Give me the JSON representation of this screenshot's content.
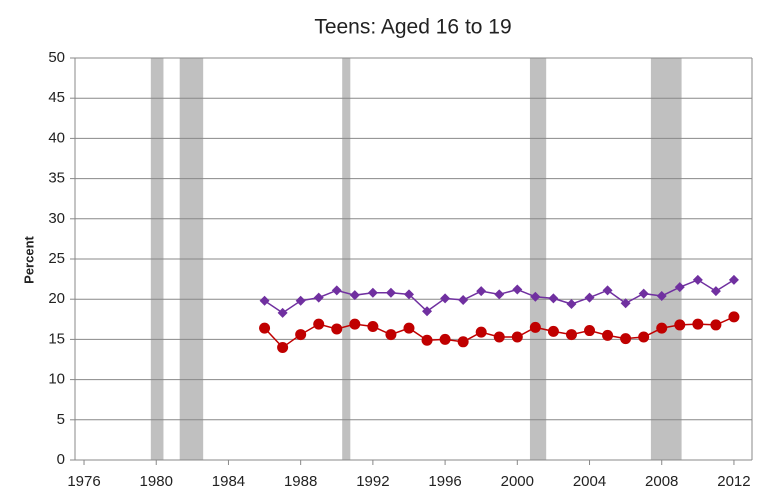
{
  "chart_data": {
    "type": "line",
    "title": "Teens: Aged 16 to 19",
    "y_label": "Percent",
    "x": [
      1986,
      1987,
      1988,
      1989,
      1990,
      1991,
      1992,
      1993,
      1994,
      1995,
      1996,
      1997,
      1998,
      1999,
      2000,
      2001,
      2002,
      2003,
      2004,
      2005,
      2006,
      2007,
      2008,
      2009,
      2010,
      2011,
      2012
    ],
    "series": [
      {
        "color": "#7030a0",
        "marker": "diamond",
        "values": [
          19.8,
          18.3,
          19.8,
          20.2,
          21.1,
          20.5,
          20.8,
          20.8,
          20.6,
          18.5,
          20.1,
          19.9,
          21.0,
          20.6,
          21.2,
          20.3,
          20.1,
          19.4,
          20.2,
          21.1,
          19.5,
          20.7,
          20.4,
          21.5,
          22.4,
          21.0,
          22.4
        ]
      },
      {
        "color": "#c00000",
        "marker": "circle",
        "values": [
          16.4,
          14.0,
          15.6,
          16.9,
          16.3,
          16.9,
          16.6,
          15.6,
          16.4,
          14.9,
          15.0,
          14.7,
          15.9,
          15.3,
          15.3,
          16.5,
          16.0,
          15.6,
          16.1,
          15.5,
          15.1,
          15.3,
          16.4,
          16.8,
          16.9,
          16.8,
          17.8
        ]
      }
    ],
    "shaded_periods": [
      [
        1979.7,
        1980.4
      ],
      [
        1981.3,
        1982.6
      ],
      [
        1990.3,
        1990.75
      ],
      [
        2000.7,
        2001.6
      ],
      [
        2007.4,
        2009.1
      ]
    ],
    "shade_color": "#c0c0c0",
    "xlim": [
      1975.5,
      2013
    ],
    "xticks": [
      1976,
      1980,
      1984,
      1988,
      1992,
      1996,
      2000,
      2004,
      2008,
      2012
    ],
    "ylim": [
      0,
      50
    ],
    "yticks": [
      0,
      5,
      10,
      15,
      20,
      25,
      30,
      35,
      40,
      45,
      50
    ],
    "grid": true
  }
}
